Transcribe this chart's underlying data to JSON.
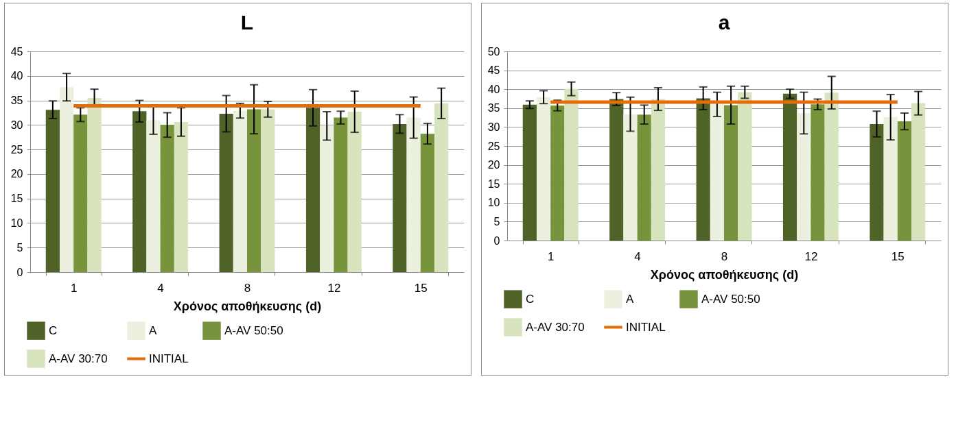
{
  "chart_data": [
    {
      "type": "bar",
      "title": "L",
      "xlabel": "Χρόνος αποθήκευσης (d)",
      "categories": [
        "1",
        "4",
        "8",
        "12",
        "15"
      ],
      "ylim": [
        0,
        45
      ],
      "yticks": [
        0,
        5,
        10,
        15,
        20,
        25,
        30,
        35,
        40,
        45
      ],
      "grid": "y",
      "legend": "bottom",
      "series": [
        {
          "name": "C",
          "color": "#4f6228",
          "values": [
            33.1,
            32.8,
            32.3,
            33.5,
            30.2
          ],
          "errors": [
            1.8,
            2.2,
            3.7,
            3.7,
            1.9
          ]
        },
        {
          "name": "A",
          "color": "#ebf1de",
          "values": [
            37.7,
            31.0,
            32.9,
            29.8,
            31.5
          ],
          "errors": [
            2.8,
            2.9,
            1.5,
            2.9,
            4.2
          ]
        },
        {
          "name": "A-AV 50:50",
          "color": "#77933c",
          "values": [
            32.1,
            30.0,
            33.2,
            31.5,
            28.2
          ],
          "errors": [
            1.4,
            2.5,
            5.0,
            1.3,
            2.1
          ]
        },
        {
          "name": "A-AV 30:70",
          "color": "#d7e4bd",
          "values": [
            35.5,
            30.6,
            33.2,
            32.7,
            34.4
          ],
          "errors": [
            1.8,
            2.9,
            1.6,
            4.2,
            3.1
          ]
        },
        {
          "name": "INITIAL",
          "color": "#e46c0a",
          "type": "line",
          "values": [
            33.9,
            33.9,
            33.9,
            33.9,
            33.9
          ]
        }
      ]
    },
    {
      "type": "bar",
      "title": "a",
      "xlabel": "Χρόνος αποθήκευσης (d)",
      "categories": [
        "1",
        "4",
        "8",
        "12",
        "15"
      ],
      "ylim": [
        0,
        50
      ],
      "yticks": [
        0,
        5,
        10,
        15,
        20,
        25,
        30,
        35,
        40,
        45,
        50
      ],
      "grid": "y",
      "legend": "bottom",
      "series": [
        {
          "name": "C",
          "color": "#4f6228",
          "values": [
            35.9,
            37.4,
            37.6,
            38.8,
            30.8
          ],
          "errors": [
            1.0,
            1.7,
            3.0,
            1.2,
            3.4
          ]
        },
        {
          "name": "A",
          "color": "#ebf1de",
          "values": [
            37.9,
            33.4,
            36.0,
            33.7,
            32.6
          ],
          "errors": [
            1.7,
            4.5,
            3.2,
            5.5,
            6.0
          ]
        },
        {
          "name": "A-AV 50:50",
          "color": "#77933c",
          "values": [
            35.7,
            33.3,
            35.8,
            36.0,
            31.5
          ],
          "errors": [
            1.4,
            2.5,
            5.0,
            1.4,
            2.2
          ]
        },
        {
          "name": "A-AV 30:70",
          "color": "#d7e4bd",
          "values": [
            40.1,
            37.4,
            39.2,
            39.1,
            36.3
          ],
          "errors": [
            1.8,
            3.0,
            1.6,
            4.3,
            3.1
          ]
        },
        {
          "name": "INITIAL",
          "color": "#e46c0a",
          "type": "line",
          "values": [
            36.6,
            36.6,
            36.6,
            36.6,
            36.6
          ]
        }
      ]
    }
  ]
}
